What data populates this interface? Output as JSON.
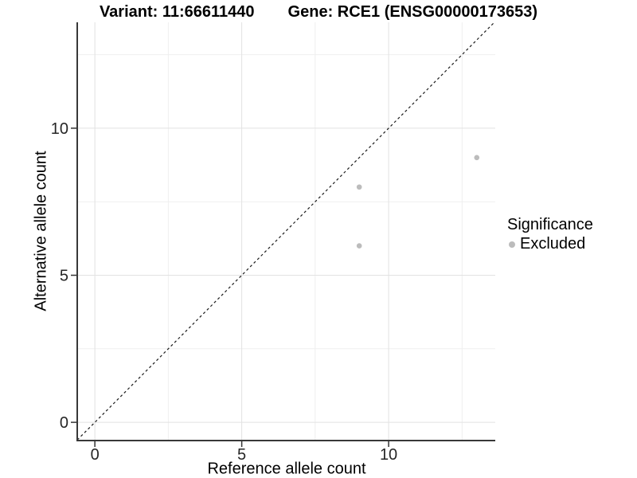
{
  "header": {
    "title_left": "Variant: 11:66611440",
    "title_right": "Gene: RCE1 (ENSG00000173653)"
  },
  "chart_data": {
    "type": "scatter",
    "title_left": "Variant: 11:66611440",
    "title_right": "Gene: RCE1 (ENSG00000173653)",
    "xlabel": "Reference allele count",
    "ylabel": "Alternative allele count",
    "xlim": [
      -0.6,
      13.63
    ],
    "ylim": [
      -0.62,
      13.6
    ],
    "xticks": [
      0,
      5,
      10
    ],
    "yticks": [
      0,
      5,
      10
    ],
    "x_minor_ticks": [
      2.5,
      7.5,
      12.5
    ],
    "y_minor_ticks": [
      2.5,
      7.5,
      12.5
    ],
    "grid": true,
    "abline": {
      "slope": 1,
      "intercept": 0,
      "style": "dashed",
      "color": "#1a1a1a"
    },
    "series": [
      {
        "name": "Excluded",
        "color": "#bcbcbc",
        "points": [
          {
            "x": 9,
            "y": 8
          },
          {
            "x": 9,
            "y": 6
          },
          {
            "x": 13,
            "y": 9
          }
        ]
      }
    ],
    "legend": {
      "title": "Significance",
      "position": "right",
      "entries": [
        {
          "label": "Excluded",
          "color": "#bcbcbc"
        }
      ]
    },
    "colors": {
      "background": "#ffffff",
      "grid_major": "#e2e2e2",
      "grid_minor": "#efefef",
      "axis_line": "#383838",
      "tick_mark": "#333333",
      "tick_label": "#262626",
      "point": "#bcbcbc"
    }
  }
}
